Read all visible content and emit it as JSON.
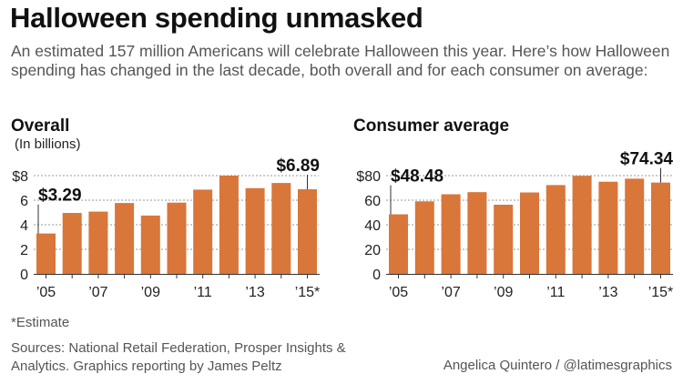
{
  "header": {
    "title": "Halloween spending unmasked",
    "subtitle": "An estimated 157 million Americans will celebrate Halloween this year. Here’s how Halloween spending has changed in the last decade, both overall and for each consumer on average:"
  },
  "footer": {
    "footnote": "*Estimate",
    "sources": "Sources: National Retail Federation, Prosper Insights & Analytics. Graphics reporting by James Peltz",
    "credit": "Angelica Quintero / @latimesgraphics"
  },
  "colors": {
    "bar": "#D9763A",
    "grid": "#999999",
    "text": "#222222"
  },
  "chart_data": [
    {
      "type": "bar",
      "title": "Overall",
      "units": "(In billions)",
      "categories": [
        "2005",
        "2006",
        "2007",
        "2008",
        "2009",
        "2010",
        "2011",
        "2012",
        "2013",
        "2014",
        "2015"
      ],
      "x_tick_labels": [
        "’05",
        "",
        "’07",
        "",
        "’09",
        "",
        "’11",
        "",
        "’13",
        "",
        "’15*"
      ],
      "values": [
        3.29,
        4.96,
        5.07,
        5.77,
        4.75,
        5.8,
        6.86,
        8.0,
        6.98,
        7.4,
        6.89
      ],
      "y_ticks": [
        0,
        2,
        4,
        6,
        8
      ],
      "y_tick_labels": [
        "0",
        "2",
        "4",
        "6",
        "$8"
      ],
      "ylim": [
        0,
        8
      ],
      "grid": true,
      "callouts": [
        {
          "index": 0,
          "label": "$3.29"
        },
        {
          "index": 10,
          "label": "$6.89"
        }
      ]
    },
    {
      "type": "bar",
      "title": "Consumer average",
      "units": "",
      "categories": [
        "2005",
        "2006",
        "2007",
        "2008",
        "2009",
        "2010",
        "2011",
        "2012",
        "2013",
        "2014",
        "2015"
      ],
      "x_tick_labels": [
        "’05",
        "",
        "’07",
        "",
        "’09",
        "",
        "’11",
        "",
        "’13",
        "",
        "’15*"
      ],
      "values": [
        48.48,
        59.06,
        64.82,
        66.54,
        56.31,
        66.28,
        72.31,
        79.82,
        75.03,
        77.52,
        74.34
      ],
      "y_ticks": [
        0,
        20,
        40,
        60,
        80
      ],
      "y_tick_labels": [
        "0",
        "20",
        "40",
        "60",
        "$80"
      ],
      "ylim": [
        0,
        80
      ],
      "grid": true,
      "callouts": [
        {
          "index": 0,
          "label": "$48.48"
        },
        {
          "index": 10,
          "label": "$74.34"
        }
      ]
    }
  ]
}
